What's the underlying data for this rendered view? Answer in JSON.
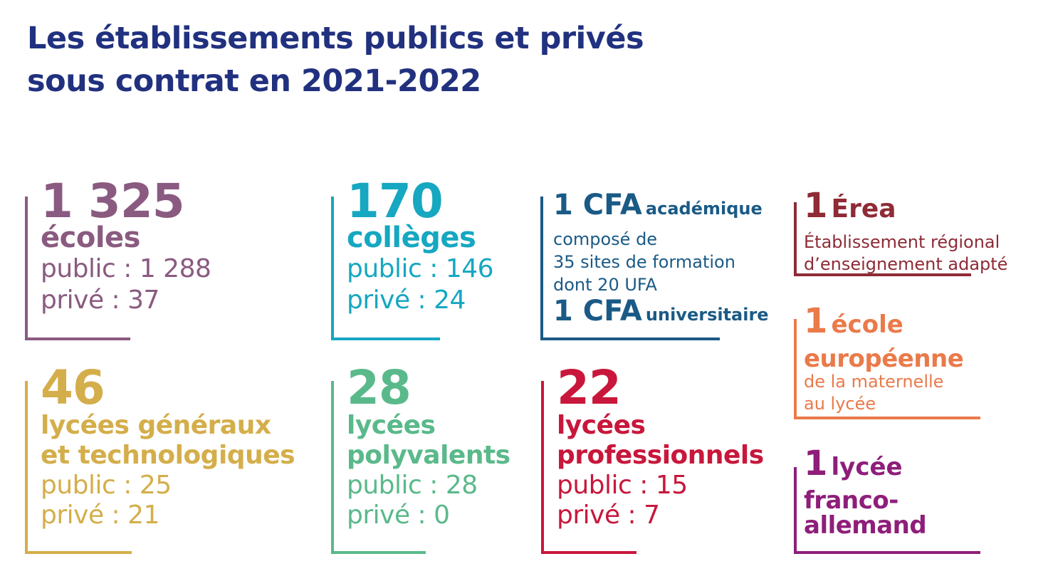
{
  "title": {
    "line1": "Les établissements publics et privés",
    "line2": "sous contrat en 2021-2022"
  },
  "colors": {
    "title": "#21317f",
    "ecoles": "#8a5a80",
    "colleges": "#16a7c1",
    "cfa": "#1a5a86",
    "erea": "#8e2b36",
    "lgt": "#d4ae4a",
    "polyvalents": "#5ab98a",
    "professionnels": "#c8173b",
    "europeenne": "#ea7a4a",
    "franco": "#8e1e7a"
  },
  "ecoles": {
    "number": "1 325",
    "label": "écoles",
    "public": "public : 1 288",
    "prive": "privé : 37"
  },
  "colleges": {
    "number": "170",
    "label": "collèges",
    "public": "public : 146",
    "prive": "privé : 24"
  },
  "cfa": {
    "num1": "1 CFA",
    "label1": "académique",
    "desc1": "composé de",
    "desc2": "35 sites de formation",
    "desc3": "dont 20 UFA",
    "num2": "1 CFA",
    "label2": "universitaire"
  },
  "erea": {
    "number": "1",
    "label": "Érea",
    "desc1": "Établissement régional",
    "desc2": "d’enseignement adapté"
  },
  "europeenne": {
    "number": "1",
    "label1": "école",
    "label2": "européenne",
    "desc1": "de la maternelle",
    "desc2": "au lycée"
  },
  "franco": {
    "number": "1",
    "label1": "lycée",
    "label2": "franco-",
    "label3": "allemand"
  },
  "lgt": {
    "number": "46",
    "label1": "lycées généraux",
    "label2": "et technologiques",
    "public": "public : 25",
    "prive": "privé : 21"
  },
  "polyvalents": {
    "number": "28",
    "label1": "lycées",
    "label2": "polyvalents",
    "public": "public : 28",
    "prive": "privé : 0"
  },
  "professionnels": {
    "number": "22",
    "label1": "lycées",
    "label2": "professionnels",
    "public": "public : 15",
    "prive": "privé : 7"
  }
}
